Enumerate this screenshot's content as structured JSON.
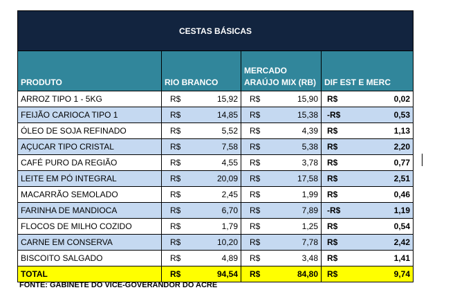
{
  "title": "CESTAS BÁSICAS",
  "headers": [
    "PRODUTO",
    "RIO BRANCO",
    "MERCADO ARAÚJO MIX (RB)",
    "DIF EST E MERC"
  ],
  "currency": "R$",
  "rows": [
    {
      "produto": "ARROZ TIPO 1 - 5KG",
      "rb": "15,92",
      "mix": "15,90",
      "dif_sign": "R$",
      "dif": "0,02"
    },
    {
      "produto": "FEIJÃO CARIOCA TIPO 1",
      "rb": "14,85",
      "mix": "15,38",
      "dif_sign": "-R$",
      "dif": "0,53"
    },
    {
      "produto": "ÓLEO DE SOJA REFINADO",
      "rb": "5,52",
      "mix": "4,39",
      "dif_sign": "R$",
      "dif": "1,13"
    },
    {
      "produto": "AÇUCAR TIPO CRISTAL",
      "rb": "7,58",
      "mix": "5,38",
      "dif_sign": "R$",
      "dif": "2,20"
    },
    {
      "produto": "CAFÉ PURO DA REGIÃO",
      "rb": "4,55",
      "mix": "3,78",
      "dif_sign": "R$",
      "dif": "0,77"
    },
    {
      "produto": "LEITE EM PÓ INTEGRAL",
      "rb": "20,09",
      "mix": "17,58",
      "dif_sign": "R$",
      "dif": "2,51"
    },
    {
      "produto": "MACARRÃO SEMOLADO",
      "rb": "2,45",
      "mix": "1,99",
      "dif_sign": "R$",
      "dif": "0,46"
    },
    {
      "produto": "FARINHA DE MANDIOCA",
      "rb": "6,70",
      "mix": "7,89",
      "dif_sign": "-R$",
      "dif": "1,19"
    },
    {
      "produto": "FLOCOS DE MILHO COZIDO",
      "rb": "1,79",
      "mix": "1,25",
      "dif_sign": "R$",
      "dif": "0,54"
    },
    {
      "produto": "CARNE EM CONSERVA",
      "rb": "10,20",
      "mix": "7,78",
      "dif_sign": "R$",
      "dif": "2,42"
    },
    {
      "produto": "BISCOITO SALGADO",
      "rb": "4,89",
      "mix": "3,48",
      "dif_sign": "R$",
      "dif": "1,41"
    }
  ],
  "total": {
    "label": "TOTAL",
    "rb": "94,54",
    "mix": "84,80",
    "dif_sign": "R$",
    "dif": "9,74"
  },
  "source": "FONTE: GABINETE DO VICE-GOVERANDOR DO ACRE",
  "colors": {
    "title_bg": "#12243f",
    "header_bg": "#31869b",
    "alt_row": "#c5d9f1",
    "total_bg": "#ffff00"
  }
}
